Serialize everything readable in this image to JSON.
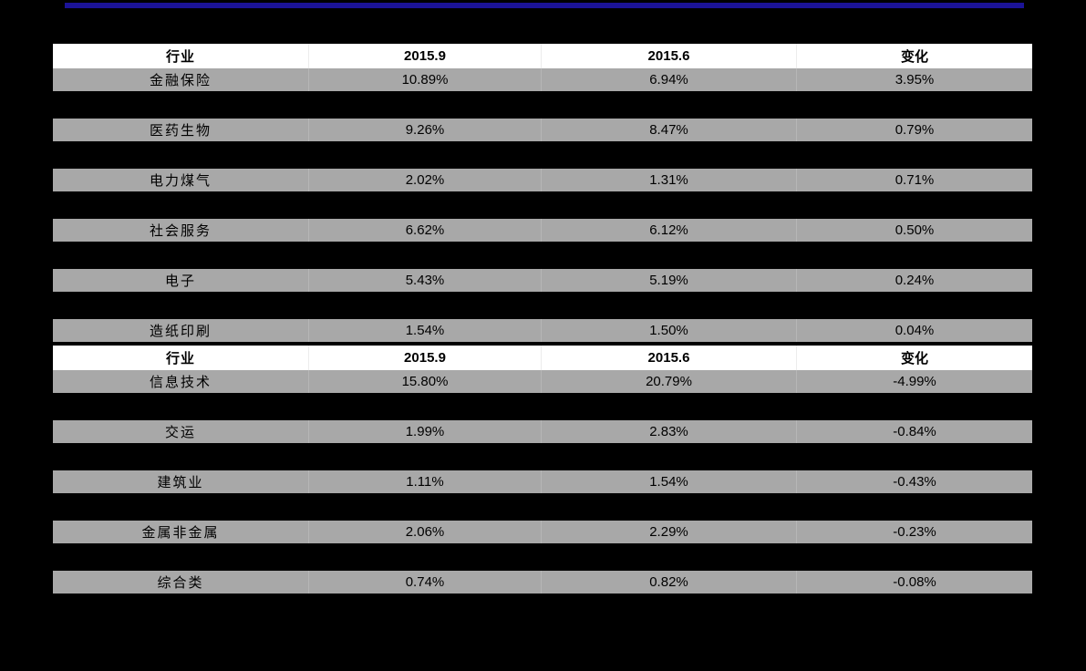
{
  "page": {
    "background": "#000000"
  },
  "top_bar": {
    "color": "#1b1397"
  },
  "column_keys": [
    "industry",
    "period-2015-9",
    "period-2015-6",
    "change"
  ],
  "tables": [
    {
      "name": "industry-table-1",
      "columns": [
        "行业",
        "2015.9",
        "2015.6",
        "变化"
      ],
      "rows": [
        {
          "industry": "金融保险",
          "v2015_9": "10.89%",
          "v2015_6": "6.94%",
          "change": "3.95%"
        },
        {
          "industry": "医药生物",
          "v2015_9": "9.26%",
          "v2015_6": "8.47%",
          "change": "0.79%"
        },
        {
          "industry": "电力煤气",
          "v2015_9": "2.02%",
          "v2015_6": "1.31%",
          "change": "0.71%"
        },
        {
          "industry": "社会服务",
          "v2015_9": "6.62%",
          "v2015_6": "6.12%",
          "change": "0.50%"
        },
        {
          "industry": "电子",
          "v2015_9": "5.43%",
          "v2015_6": "5.19%",
          "change": "0.24%"
        },
        {
          "industry": "造纸印刷",
          "v2015_9": "1.54%",
          "v2015_6": "1.50%",
          "change": "0.04%"
        }
      ]
    },
    {
      "name": "industry-table-2",
      "columns": [
        "行业",
        "2015.9",
        "2015.6",
        "变化"
      ],
      "rows": [
        {
          "industry": "信息技术",
          "v2015_9": "15.80%",
          "v2015_6": "20.79%",
          "change": "-4.99%"
        },
        {
          "industry": "交运",
          "v2015_9": "1.99%",
          "v2015_6": "2.83%",
          "change": "-0.84%"
        },
        {
          "industry": "建筑业",
          "v2015_9": "1.11%",
          "v2015_6": "1.54%",
          "change": "-0.43%"
        },
        {
          "industry": "金属非金属",
          "v2015_9": "2.06%",
          "v2015_6": "2.29%",
          "change": "-0.23%"
        },
        {
          "industry": "综合类",
          "v2015_9": "0.74%",
          "v2015_6": "0.82%",
          "change": "-0.08%"
        }
      ]
    }
  ]
}
